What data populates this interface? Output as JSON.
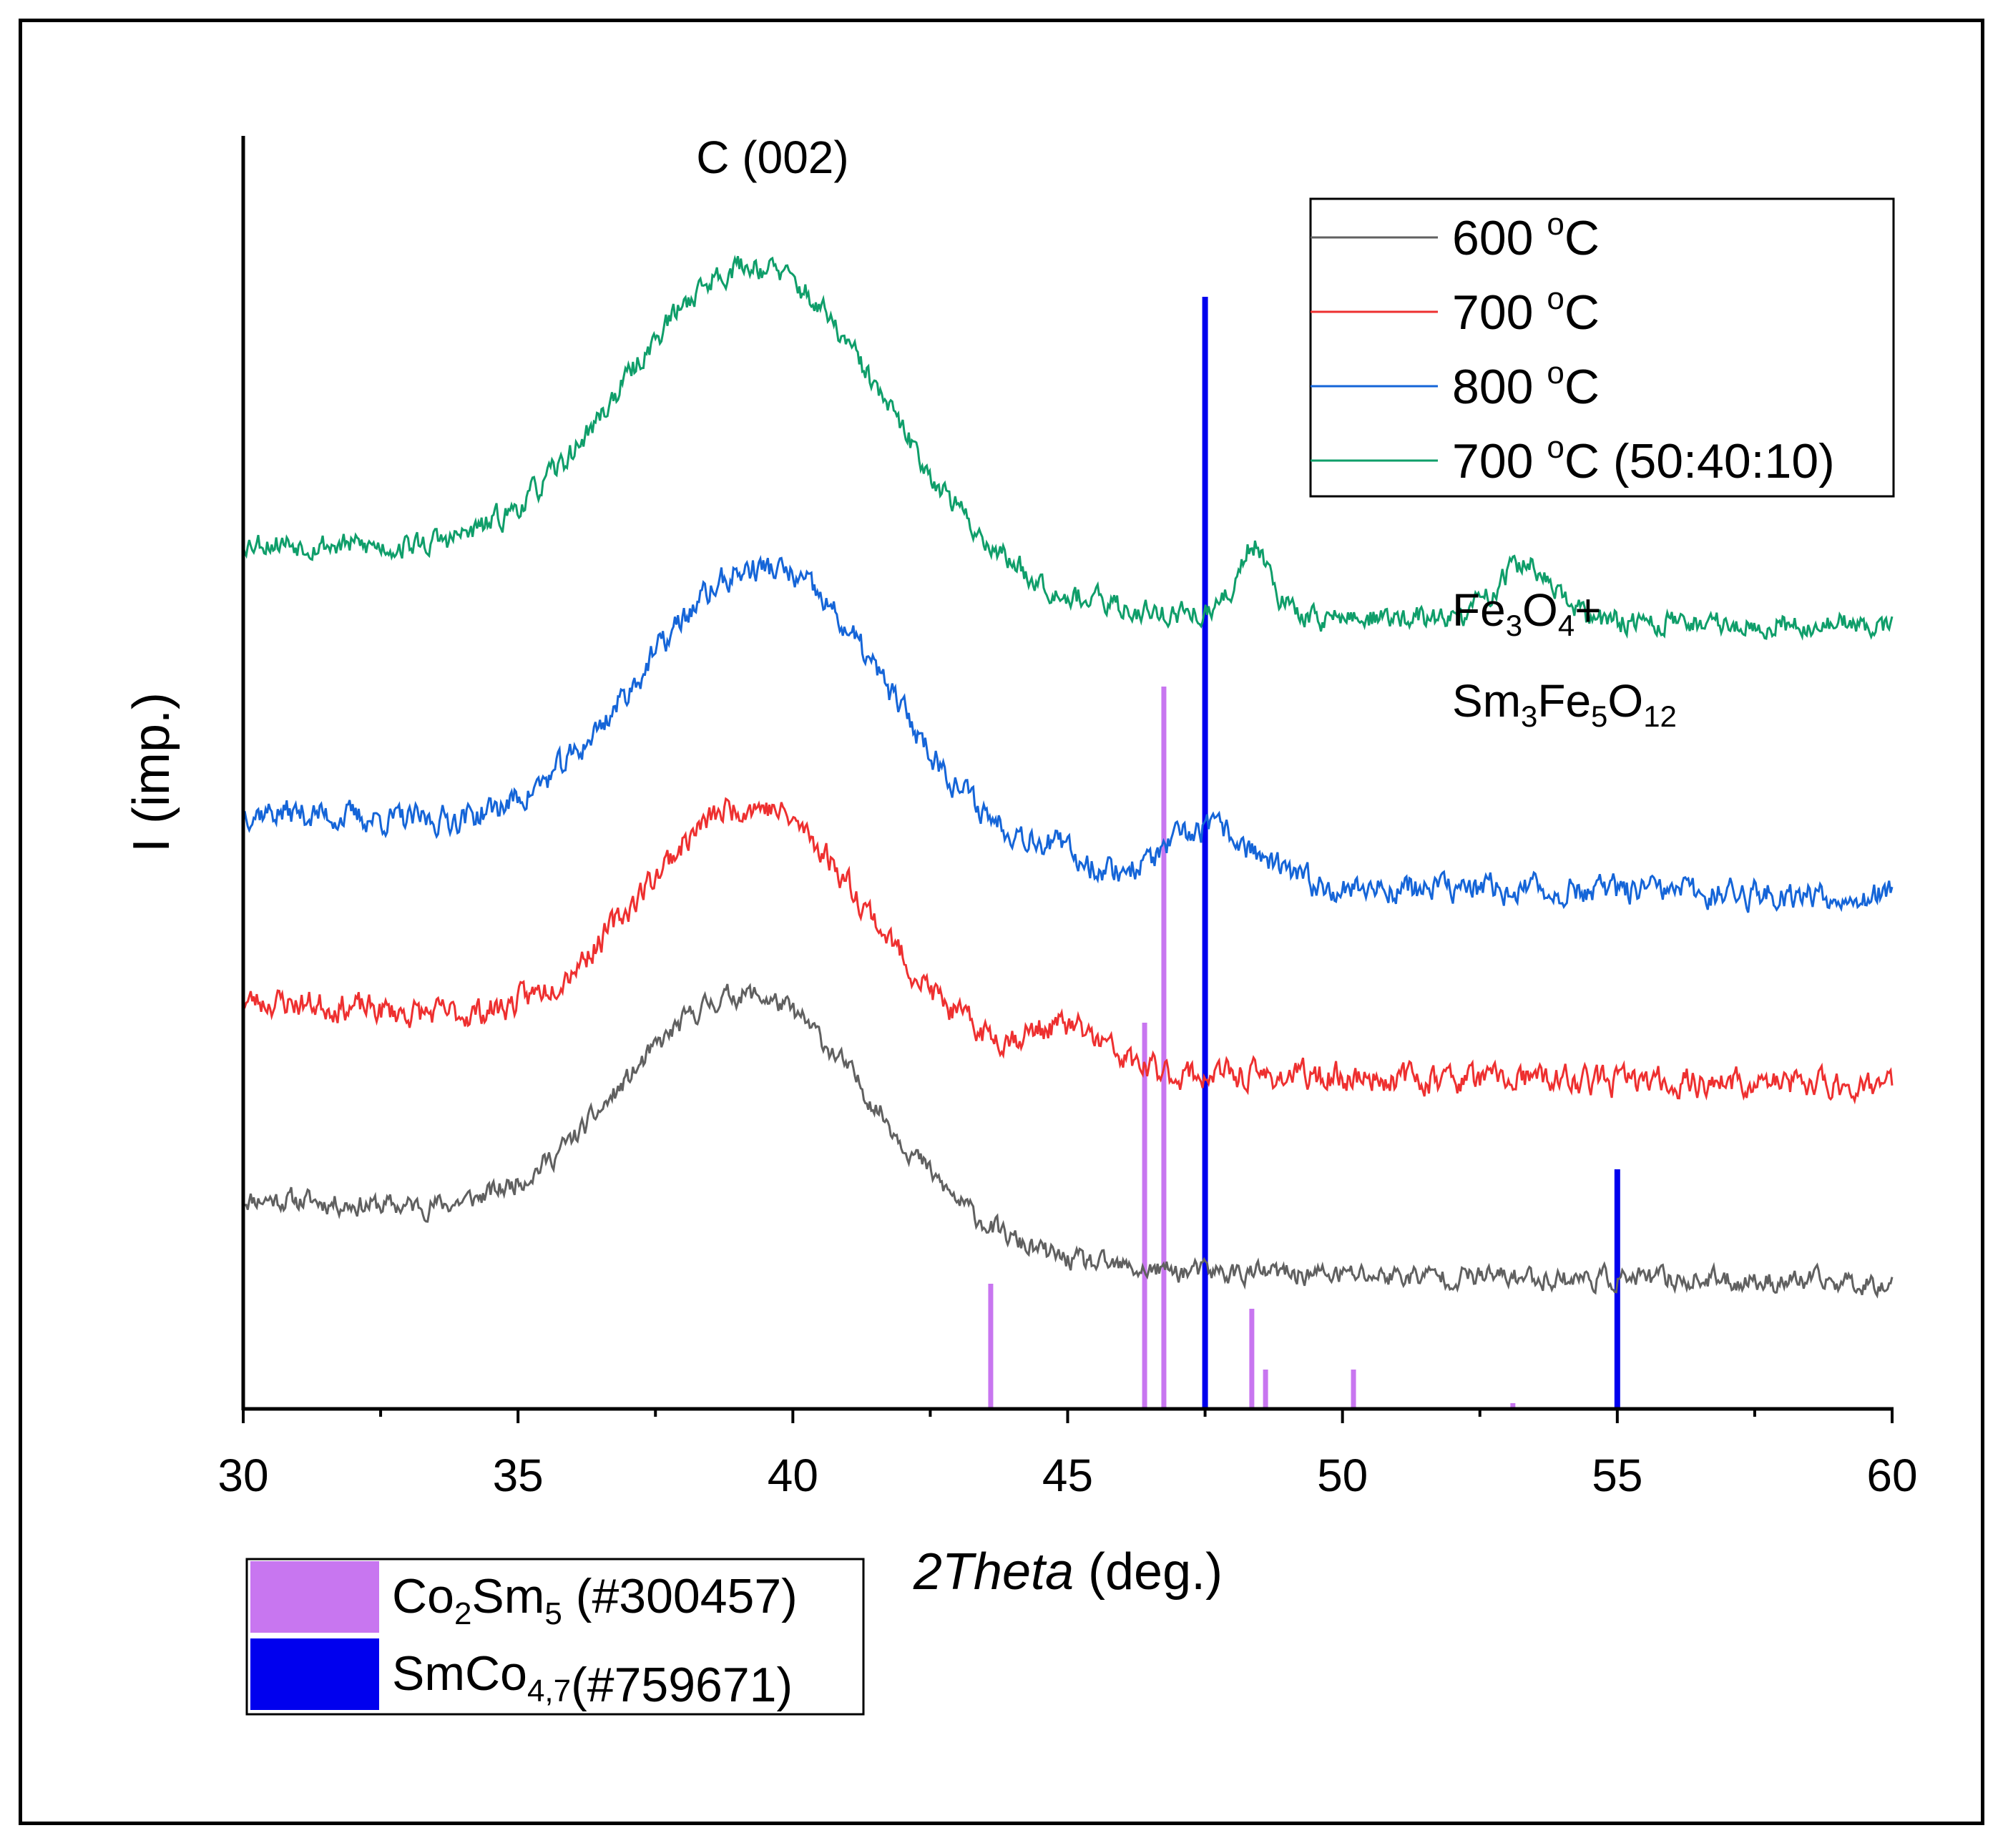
{
  "chart_data": {
    "type": "line",
    "title": "",
    "xlabel_italic": "2Theta",
    "xlabel_rest": " (deg.)",
    "ylabel": "I (imp.)",
    "xlim": [
      30,
      60
    ],
    "x_ticks": [
      "30",
      "35",
      "40",
      "45",
      "50",
      "55",
      "60"
    ],
    "x_tick_values": [
      30,
      35,
      40,
      45,
      50,
      55,
      60
    ],
    "yticks_shown": false,
    "series": [
      {
        "name": "600 °C",
        "color": "#606060",
        "baseline": 90,
        "peak_x": 39.2,
        "peak_height": 330,
        "peak_width": 2.3,
        "features": [],
        "noise": 14,
        "seed": 11
      },
      {
        "name": "700 °C",
        "color": "#ee3030",
        "baseline": 310,
        "peak_x": 39.3,
        "peak_height": 320,
        "peak_width": 2.1,
        "features": [
          [
            45.0,
            50,
            0.7
          ]
        ],
        "noise": 18,
        "seed": 23
      },
      {
        "name": "800 °C",
        "color": "#1565d8",
        "baseline": 520,
        "peak_x": 39.5,
        "peak_height": 380,
        "peak_width": 2.3,
        "features": [
          [
            44.7,
            20,
            0.6
          ],
          [
            47.6,
            70,
            0.8
          ]
        ],
        "noise": 18,
        "seed": 37
      },
      {
        "name": "700 °C (50:40:10)",
        "color": "#0f9e6a",
        "baseline": 830,
        "peak_x": 39.3,
        "peak_height": 420,
        "peak_width": 2.4,
        "features": [
          [
            48.4,
            90,
            0.3
          ],
          [
            53.3,
            70,
            0.5
          ]
        ],
        "noise": 16,
        "seed": 53
      }
    ],
    "legend": {
      "position": "top-right",
      "entries": [
        {
          "label": "600 ",
          "sup": "o",
          "tail": "C",
          "color": "#606060"
        },
        {
          "label": "700 ",
          "sup": "o",
          "tail": "C",
          "color": "#ee3030"
        },
        {
          "label": "800 ",
          "sup": "o",
          "tail": "C",
          "color": "#1565d8"
        },
        {
          "label": "700 ",
          "sup": "o",
          "tail": "C (50:40:10)",
          "color": "#0f9e6a"
        }
      ]
    },
    "reference_patterns": [
      {
        "name": "Co2Sm5 (#300457)",
        "color": "#c876f0",
        "positions": [
          43.6,
          46.4,
          46.75,
          48.35,
          48.6,
          50.2,
          53.1
        ],
        "heights": [
          175,
          540,
          1010,
          140,
          55,
          55,
          8
        ]
      },
      {
        "name": "SmCo4,7(#759671)",
        "color": "#0000ee",
        "positions": [
          47.5,
          55.0
        ],
        "heights": [
          1555,
          335
        ]
      }
    ],
    "annotations": [
      {
        "text": "C (002)",
        "near_x": 39.5
      },
      {
        "text": "Fe3O4+Sm3Fe5O12",
        "near_x": 53.5
      }
    ],
    "ref_legend": {
      "position": "bottom-left",
      "entries": [
        {
          "main": "Co",
          "sub1": "2",
          "main2": "Sm",
          "sub2": "5",
          "rest": " (#300457)",
          "color": "#c876f0"
        },
        {
          "main": "SmCo",
          "sub1": "4,7",
          "main2": "",
          "sub2": "",
          "rest": "(#759671)",
          "color": "#0000ee"
        }
      ]
    }
  },
  "annotations_text": {
    "c002": "C (002)",
    "fe_line1_a": "Fe",
    "fe_line1_sub1": "3",
    "fe_line1_b": "O",
    "fe_line1_sub2": "4",
    "fe_line1_c": "+",
    "fe_line2_a": "Sm",
    "fe_line2_sub1": "3",
    "fe_line2_b": "Fe",
    "fe_line2_sub2": "5",
    "fe_line2_c": "O",
    "fe_line2_sub3": "12"
  }
}
